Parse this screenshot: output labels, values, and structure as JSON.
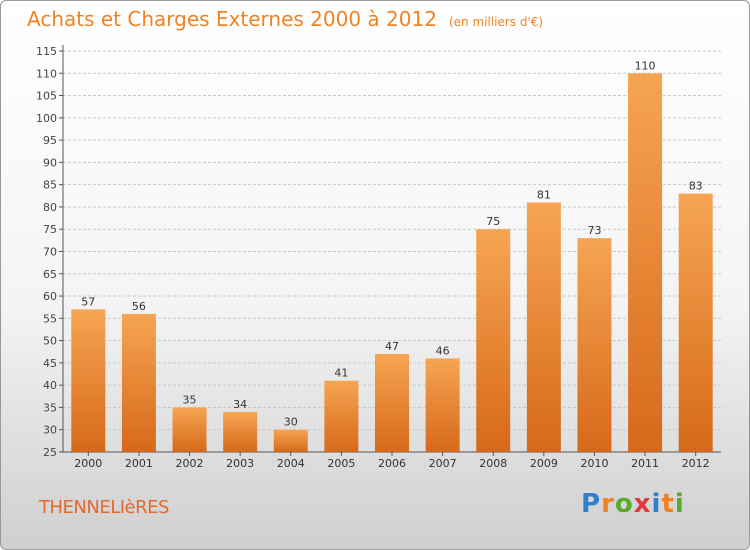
{
  "title": "Achats et Charges Externes 2000 à 2012",
  "subtitle": "(en milliers d'€)",
  "location": "THENNELIèRES",
  "brand": {
    "letters": [
      "P",
      "r",
      "o",
      "x",
      "i",
      "t",
      "i"
    ],
    "colors": [
      "#2e7fd0",
      "#f08224",
      "#5aaa2a",
      "#e23a3a",
      "#2e7fd0",
      "#f08224",
      "#5aaa2a"
    ]
  },
  "colors": {
    "bar": "#f08224",
    "bar_light": "#f6a552",
    "bar_dark": "#d6691a",
    "title": "#f08224",
    "grid": "#c8c8c8"
  },
  "chart_data": {
    "type": "bar",
    "categories": [
      "2000",
      "2001",
      "2002",
      "2003",
      "2004",
      "2005",
      "2006",
      "2007",
      "2008",
      "2009",
      "2010",
      "2011",
      "2012"
    ],
    "values": [
      57,
      56,
      35,
      34,
      30,
      41,
      47,
      46,
      75,
      81,
      73,
      110,
      83
    ],
    "ylim": [
      25,
      115
    ],
    "yticks": [
      25,
      30,
      35,
      40,
      45,
      50,
      55,
      60,
      65,
      70,
      75,
      80,
      85,
      90,
      95,
      100,
      105,
      110,
      115
    ],
    "grid": true
  }
}
